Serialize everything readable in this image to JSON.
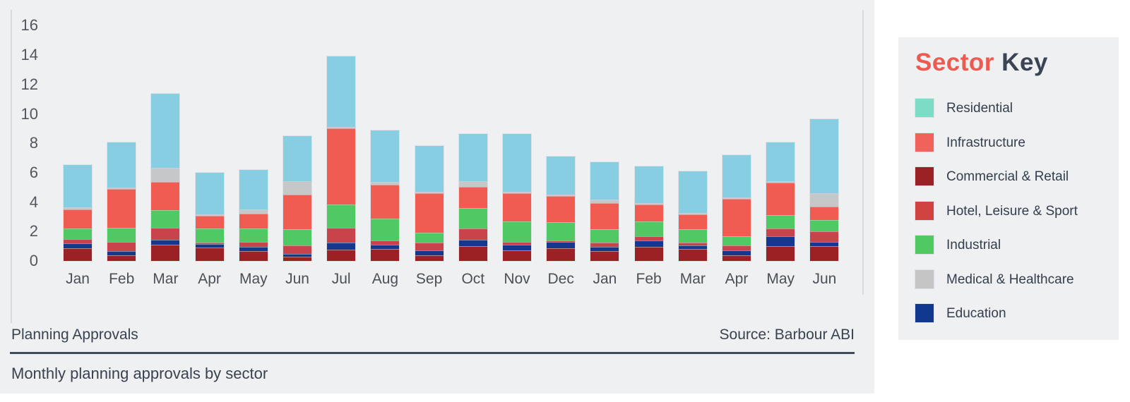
{
  "chart_data": {
    "type": "bar",
    "stacked": true,
    "title": "Planning Approvals",
    "subtitle": "Monthly planning approvals by sector",
    "source": "Source: Barbour ABI",
    "categories": [
      "Jan",
      "Feb",
      "Mar",
      "Apr",
      "May",
      "Jun",
      "Jul",
      "Aug",
      "Sep",
      "Oct",
      "Nov",
      "Dec",
      "Jan",
      "Feb",
      "Mar",
      "Apr",
      "May",
      "Jun"
    ],
    "stack_order": "bottom-to-top",
    "series": [
      {
        "name": "Commercial & Retail",
        "color": "#9c2125",
        "values": [
          0.85,
          0.4,
          1.1,
          0.9,
          0.65,
          0.3,
          0.75,
          0.8,
          0.4,
          1.0,
          0.7,
          0.85,
          0.65,
          0.95,
          0.8,
          0.4,
          1.0,
          1.0
        ]
      },
      {
        "name": "Education",
        "color": "#15388c",
        "values": [
          0.35,
          0.25,
          0.35,
          0.25,
          0.3,
          0.2,
          0.5,
          0.3,
          0.3,
          0.45,
          0.4,
          0.45,
          0.3,
          0.45,
          0.25,
          0.3,
          0.7,
          0.3
        ]
      },
      {
        "name": "Hotel, Leisure & Sport",
        "color": "#c9434a",
        "values": [
          0.3,
          0.65,
          0.8,
          0.1,
          0.35,
          0.55,
          1.0,
          0.3,
          0.55,
          0.75,
          0.2,
          0.1,
          0.3,
          0.3,
          0.2,
          0.35,
          0.5,
          0.7
        ]
      },
      {
        "name": "Industrial",
        "color": "#50c964",
        "values": [
          0.7,
          0.95,
          1.2,
          0.95,
          0.9,
          1.1,
          1.6,
          1.5,
          0.65,
          1.4,
          1.4,
          1.25,
          0.9,
          1.0,
          0.9,
          0.65,
          0.9,
          0.8
        ]
      },
      {
        "name": "Infrastructure",
        "color": "#f05c52",
        "values": [
          1.3,
          2.65,
          1.9,
          0.85,
          1.0,
          2.35,
          5.15,
          2.3,
          2.7,
          1.45,
          1.9,
          1.75,
          1.8,
          1.15,
          1.0,
          2.5,
          2.2,
          0.9
        ]
      },
      {
        "name": "Medical & Healthcare",
        "color": "#c6c7c9",
        "values": [
          0.15,
          0.1,
          1.0,
          0.1,
          0.3,
          0.9,
          0.1,
          0.15,
          0.1,
          0.35,
          0.1,
          0.1,
          0.2,
          0.1,
          0.1,
          0.1,
          0.1,
          0.9
        ]
      },
      {
        "name": "Residential",
        "color": "#87cee3",
        "values": [
          2.85,
          3.05,
          5.0,
          2.85,
          2.7,
          3.1,
          4.8,
          3.5,
          3.1,
          3.25,
          3.95,
          2.6,
          2.55,
          2.5,
          2.85,
          2.9,
          2.65,
          5.05
        ]
      }
    ],
    "ylim": [
      0,
      16
    ],
    "yticks": [
      0,
      2,
      4,
      6,
      8,
      10,
      12,
      14,
      16
    ],
    "grid": false,
    "legend_position": "right"
  },
  "footer": {
    "left": "Planning Approvals",
    "source": "Source: Barbour ABI"
  },
  "caption": "Monthly planning approvals by sector",
  "legend": {
    "title_accent": "Sector",
    "title_rest": " Key",
    "items": [
      {
        "label": "Residential",
        "color": "#7cdcc6"
      },
      {
        "label": "Infrastructure",
        "color": "#f0625a"
      },
      {
        "label": "Commercial & Retail",
        "color": "#9c2125"
      },
      {
        "label": "Hotel, Leisure & Sport",
        "color": "#d04340"
      },
      {
        "label": "Industrial",
        "color": "#4fc960"
      },
      {
        "label": "Medical & Healthcare",
        "color": "#c5c5c5"
      },
      {
        "label": "Education",
        "color": "#10398e"
      }
    ]
  },
  "colors": {
    "panel_bg": "#eef0f2",
    "accent_red": "#ee5a50",
    "title_dark": "#3b4454",
    "axis_text": "#53575d",
    "rule": "#3f4b5c"
  }
}
